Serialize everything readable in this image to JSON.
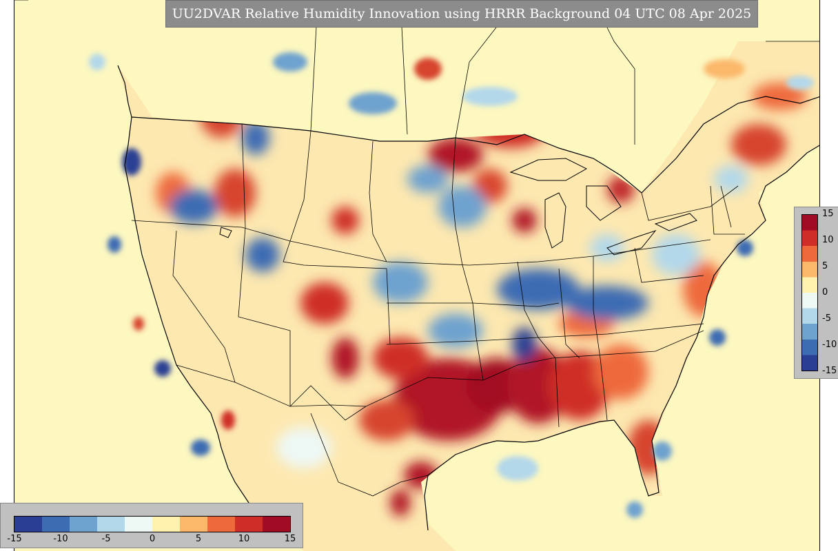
{
  "title": "UU2DVAR Relative Humidity Innovation using HRRR Background 04 UTC 08 Apr 2025",
  "map": {
    "region": "Contiguous United States",
    "ocean_color": "#fdf7c0",
    "boundary_color": "#000000"
  },
  "colorbar_right": {
    "ticks": [
      "15",
      "10",
      "5",
      "0",
      "-5",
      "-10",
      "-15"
    ],
    "min": -15,
    "max": 15
  },
  "colorbar_bottom": {
    "ticks": [
      "-15",
      "-10",
      "-5",
      "0",
      "5",
      "10",
      "15"
    ],
    "min": -15,
    "max": 15
  },
  "colors": {
    "panel_gray": "#c0c0c0",
    "title_gray": "#8c8c8c",
    "scale": [
      "#2a3f93",
      "#3e6cb3",
      "#6ea2cf",
      "#b3d8ea",
      "#eef8f5",
      "#fff2ae",
      "#fbb86a",
      "#ee6a3c",
      "#cf2d27",
      "#a10b24"
    ]
  }
}
